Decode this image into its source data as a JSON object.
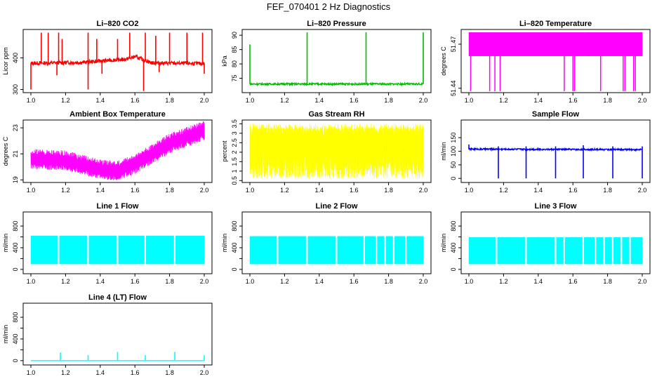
{
  "figure_title": "FEF_070401  2 Hz Diagnostics",
  "chart_data": [
    {
      "id": "co2",
      "type": "line",
      "title": "Li–820 CO2",
      "ylabel": "Licor ppm",
      "xlim": [
        1.0,
        2.0
      ],
      "ylim": [
        290,
        490
      ],
      "xticks": [
        1.0,
        1.2,
        1.4,
        1.6,
        1.8,
        2.0
      ],
      "xtick_labels": [
        "1.0",
        "1.2",
        "1.4",
        "1.6",
        "1.8",
        "2.0"
      ],
      "yticks": [
        300,
        400
      ],
      "ytick_labels": [
        "300",
        "400"
      ],
      "color": "#ff0000",
      "baseline": 380,
      "noise": 6,
      "mode": "line",
      "spikes": [
        [
          1.06,
          480
        ],
        [
          1.1,
          480
        ],
        [
          1.16,
          480
        ],
        [
          1.18,
          460
        ],
        [
          1.33,
          480
        ],
        [
          1.38,
          460
        ],
        [
          1.5,
          460
        ],
        [
          1.57,
          480
        ],
        [
          1.66,
          480
        ],
        [
          1.72,
          470
        ],
        [
          1.8,
          480
        ],
        [
          1.9,
          480
        ],
        [
          1.99,
          480
        ]
      ],
      "dips": [
        [
          1.0,
          300
        ],
        [
          1.15,
          345
        ],
        [
          1.33,
          300
        ],
        [
          1.41,
          350
        ],
        [
          1.65,
          295
        ],
        [
          1.74,
          355
        ],
        [
          2.0,
          350
        ]
      ],
      "trend": [
        [
          1.0,
          383
        ],
        [
          1.3,
          386
        ],
        [
          1.55,
          396
        ],
        [
          1.6,
          404
        ],
        [
          1.7,
          384
        ],
        [
          2.0,
          382
        ]
      ]
    },
    {
      "id": "pressure",
      "type": "line",
      "title": "Li–820 Pressure",
      "ylabel": "kPa",
      "xlim": [
        1.0,
        2.0
      ],
      "ylim": [
        70,
        92
      ],
      "xticks": [
        1.0,
        1.2,
        1.4,
        1.6,
        1.8,
        2.0
      ],
      "xtick_labels": [
        "1.0",
        "1.2",
        "1.4",
        "1.6",
        "1.8",
        "2.0"
      ],
      "yticks": [
        75,
        80,
        85,
        90
      ],
      "ytick_labels": [
        "75",
        "80",
        "85",
        "90"
      ],
      "color": "#00bb00",
      "baseline": 73,
      "noise": 0.3,
      "mode": "line",
      "spikes": [
        [
          1.0,
          86.8
        ],
        [
          1.33,
          91
        ],
        [
          1.67,
          91
        ],
        [
          2.0,
          91
        ]
      ],
      "dips": [],
      "trend": [
        [
          1.0,
          73
        ],
        [
          2.0,
          73
        ]
      ]
    },
    {
      "id": "licor_temp",
      "type": "area",
      "title": "Li–820 Temperature",
      "ylabel": "degrees C",
      "xlim": [
        1.0,
        2.0
      ],
      "ylim": [
        51.437,
        51.48
      ],
      "xticks": [
        1.0,
        1.2,
        1.4,
        1.6,
        1.8,
        2.0
      ],
      "xtick_labels": [
        "1.0",
        "1.2",
        "1.4",
        "1.6",
        "1.8",
        "2.0"
      ],
      "yticks": [
        51.44,
        51.47
      ],
      "ytick_labels": [
        "51.44",
        "51.47"
      ],
      "color": "#ff00ff",
      "band": [
        51.462,
        51.478
      ],
      "spikes": [],
      "dips": [
        [
          1.01,
          51.438
        ],
        [
          1.12,
          51.438
        ],
        [
          1.15,
          51.438
        ],
        [
          1.18,
          51.438
        ],
        [
          1.55,
          51.438
        ],
        [
          1.6,
          51.438
        ],
        [
          1.61,
          51.438
        ],
        [
          1.76,
          51.438
        ],
        [
          1.89,
          51.438
        ],
        [
          1.9,
          51.438
        ],
        [
          1.95,
          51.438
        ],
        [
          1.96,
          51.438
        ]
      ]
    },
    {
      "id": "ambient",
      "type": "line",
      "title": "Ambient Box Temperature",
      "ylabel": "degrees C",
      "xlim": [
        1.0,
        2.0
      ],
      "ylim": [
        18.8,
        23.6
      ],
      "xticks": [
        1.0,
        1.2,
        1.4,
        1.6,
        1.8,
        2.0
      ],
      "xtick_labels": [
        "1.0",
        "1.2",
        "1.4",
        "1.6",
        "1.8",
        "2.0"
      ],
      "yticks": [
        19,
        21,
        23
      ],
      "ytick_labels": [
        "19",
        "21",
        "23"
      ],
      "color": "#ff00ff",
      "noise": 0.55,
      "mode": "band",
      "spikes": [],
      "dips": [],
      "trend": [
        [
          1.0,
          20.6
        ],
        [
          1.2,
          20.5
        ],
        [
          1.4,
          19.8
        ],
        [
          1.5,
          19.7
        ],
        [
          1.6,
          20.2
        ],
        [
          1.7,
          21.0
        ],
        [
          1.8,
          21.8
        ],
        [
          1.9,
          22.3
        ],
        [
          2.0,
          22.8
        ]
      ]
    },
    {
      "id": "rh",
      "type": "area",
      "title": "Gas Stream RH",
      "ylabel": "percent",
      "xlim": [
        1.0,
        2.0
      ],
      "ylim": [
        0.4,
        3.7
      ],
      "xticks": [
        1.0,
        1.2,
        1.4,
        1.6,
        1.8,
        2.0
      ],
      "xtick_labels": [
        "1.0",
        "1.2",
        "1.4",
        "1.6",
        "1.8",
        "2.0"
      ],
      "yticks": [
        0.5,
        1.0,
        1.5,
        2.0,
        2.5,
        3.0,
        3.5
      ],
      "ytick_labels": [
        "0.5",
        "1",
        "1.5",
        "2",
        "2.5",
        "3",
        "3.5"
      ],
      "color": "#ffff00",
      "band": [
        2.6,
        3.3
      ],
      "random_low": [
        0.6,
        2.5
      ],
      "spikes": [],
      "dips": []
    },
    {
      "id": "sample_flow",
      "type": "line",
      "title": "Sample Flow",
      "ylabel": "ml/min",
      "xlim": [
        1.0,
        2.0
      ],
      "ylim": [
        -15,
        215
      ],
      "xticks": [
        1.0,
        1.2,
        1.4,
        1.6,
        1.8,
        2.0
      ],
      "xtick_labels": [
        "1.0",
        "1.2",
        "1.4",
        "1.6",
        "1.8",
        "2.0"
      ],
      "yticks": [
        0,
        50,
        100,
        150
      ],
      "ytick_labels": [
        "0",
        "50",
        "100",
        "150"
      ],
      "color": "#0000ff",
      "baseline": 107,
      "noise": 3,
      "mode": "line",
      "spikes": [
        [
          1.0,
          125
        ],
        [
          1.17,
          118
        ],
        [
          1.33,
          118
        ],
        [
          1.5,
          118
        ],
        [
          1.66,
          122
        ],
        [
          1.83,
          118
        ],
        [
          2.0,
          118
        ]
      ],
      "dips": [
        [
          1.17,
          0
        ],
        [
          1.33,
          0
        ],
        [
          1.5,
          0
        ],
        [
          1.66,
          0
        ],
        [
          1.83,
          0
        ],
        [
          2.0,
          0
        ]
      ],
      "trend": [
        [
          1.0,
          108
        ],
        [
          2.0,
          106
        ]
      ]
    },
    {
      "id": "line1",
      "type": "area",
      "title": "Line 1 Flow",
      "ylabel": "ml/min",
      "xlim": [
        1.0,
        2.0
      ],
      "ylim": [
        -80,
        1060
      ],
      "xticks": [
        1.0,
        1.2,
        1.4,
        1.6,
        1.8,
        2.0
      ],
      "xtick_labels": [
        "1.0",
        "1.2",
        "1.4",
        "1.6",
        "1.8",
        "2.0"
      ],
      "yticks": [
        0,
        200,
        400,
        600,
        800
      ],
      "ytick_labels": [
        "0",
        "",
        "400",
        "",
        "800"
      ],
      "color": "#00ffff",
      "band": [
        100,
        620
      ],
      "spikes": [],
      "dips": [],
      "gaps": [
        1.16,
        1.33,
        1.5,
        1.66,
        1.83
      ]
    },
    {
      "id": "line2",
      "type": "area",
      "title": "Line 2 Flow",
      "ylabel": "ml/min",
      "xlim": [
        1.0,
        2.0
      ],
      "ylim": [
        -80,
        1060
      ],
      "xticks": [
        1.0,
        1.2,
        1.4,
        1.6,
        1.8,
        2.0
      ],
      "xtick_labels": [
        "1.0",
        "1.2",
        "1.4",
        "1.6",
        "1.8",
        "2.0"
      ],
      "yticks": [
        0,
        200,
        400,
        600,
        800
      ],
      "ytick_labels": [
        "0",
        "",
        "400",
        "",
        "800"
      ],
      "color": "#00ffff",
      "band": [
        100,
        610
      ],
      "spikes": [],
      "dips": [],
      "gaps": [
        1.16,
        1.33,
        1.5,
        1.66,
        1.73,
        1.78,
        1.83,
        1.9
      ]
    },
    {
      "id": "line3",
      "type": "area",
      "title": "Line 3 Flow",
      "ylabel": "ml/min",
      "xlim": [
        1.0,
        2.0
      ],
      "ylim": [
        -80,
        1060
      ],
      "xticks": [
        1.0,
        1.2,
        1.4,
        1.6,
        1.8,
        2.0
      ],
      "xtick_labels": [
        "1.0",
        "1.2",
        "1.4",
        "1.6",
        "1.8",
        "2.0"
      ],
      "yticks": [
        0,
        200,
        400,
        600,
        800
      ],
      "ytick_labels": [
        "0",
        "",
        "400",
        "",
        "800"
      ],
      "color": "#00ffff",
      "band": [
        100,
        590
      ],
      "spikes": [],
      "dips": [],
      "gaps": [
        1.16,
        1.33,
        1.5,
        1.55,
        1.66,
        1.73,
        1.78,
        1.83,
        1.88,
        1.93
      ]
    },
    {
      "id": "line4",
      "type": "line",
      "title": "Line 4 (LT) Flow",
      "ylabel": "ml/min",
      "xlim": [
        1.0,
        2.0
      ],
      "ylim": [
        -80,
        1060
      ],
      "xticks": [
        1.0,
        1.2,
        1.4,
        1.6,
        1.8,
        2.0
      ],
      "xtick_labels": [
        "1.0",
        "1.2",
        "1.4",
        "1.6",
        "1.8",
        "2.0"
      ],
      "yticks": [
        0,
        200,
        400,
        600,
        800
      ],
      "ytick_labels": [
        "0",
        "",
        "400",
        "",
        "800"
      ],
      "color": "#00ffff",
      "baseline": 0,
      "noise": 0,
      "mode": "line",
      "spikes": [
        [
          1.17,
          150
        ],
        [
          1.33,
          100
        ],
        [
          1.5,
          160
        ],
        [
          1.66,
          100
        ],
        [
          1.83,
          160
        ],
        [
          2.0,
          100
        ]
      ],
      "dips": [],
      "trend": [
        [
          1.0,
          0
        ],
        [
          2.0,
          0
        ]
      ]
    }
  ]
}
